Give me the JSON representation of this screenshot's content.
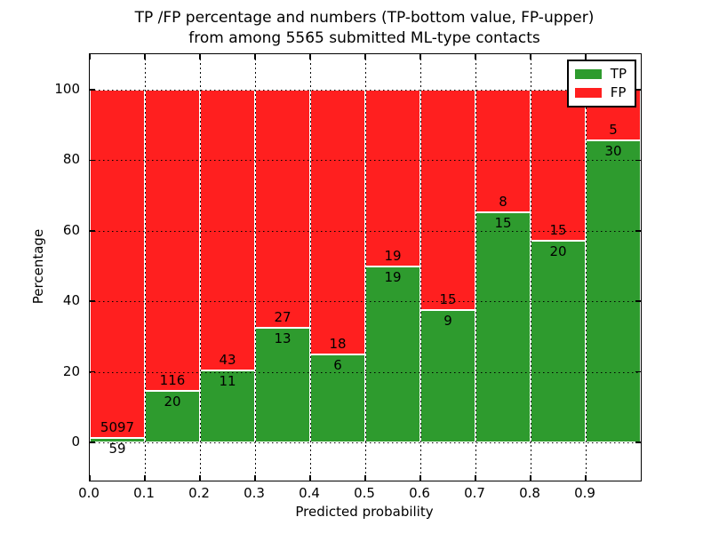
{
  "figure": {
    "title_line1": "TP /FP percentage and numbers (TP-bottom value, FP-upper)",
    "title_line2": "from among 5565 submitted ML-type contacts"
  },
  "chart_data": {
    "type": "bar",
    "stacked": true,
    "normalized": "percent (each bar scaled to 100%)",
    "title": "TP /FP percentage and numbers (TP-bottom value, FP-upper) from among 5565 submitted ML-type contacts",
    "xlabel": "Predicted probability",
    "ylabel": "Percentage",
    "total_contacts": 5565,
    "bin_width": 0.1,
    "bin_starts": [
      0.0,
      0.1,
      0.2,
      0.3,
      0.4,
      0.5,
      0.6,
      0.7,
      0.8,
      0.9
    ],
    "x_tick_labels": [
      "0.0",
      "0.1",
      "0.2",
      "0.3",
      "0.4",
      "0.5",
      "0.6",
      "0.7",
      "0.8",
      "0.9"
    ],
    "y_ticks": [
      0,
      20,
      40,
      60,
      80,
      100
    ],
    "y_tick_labels": [
      "0",
      "20",
      "40",
      "60",
      "80",
      "100"
    ],
    "xlim": [
      0.0,
      1.0
    ],
    "ylim": [
      -10.8,
      110.1
    ],
    "grid": {
      "style": "dotted",
      "color": "#000000",
      "on": true
    },
    "series": [
      {
        "name": "TP",
        "color": "#2e9b2e",
        "counts": [
          59,
          20,
          11,
          13,
          6,
          19,
          9,
          15,
          20,
          30
        ]
      },
      {
        "name": "FP",
        "color": "#ff1f1f",
        "counts": [
          5097,
          116,
          43,
          27,
          18,
          19,
          15,
          8,
          15,
          5
        ]
      }
    ],
    "tp_percent_of_bar": [
      1.14,
      14.71,
      20.37,
      32.5,
      25.0,
      50.0,
      37.5,
      65.22,
      57.14,
      85.71
    ],
    "legend": {
      "position": "upper right",
      "entries": [
        {
          "label": "TP",
          "color": "#2e9b2e"
        },
        {
          "label": "FP",
          "color": "#ff1f1f"
        }
      ]
    }
  }
}
